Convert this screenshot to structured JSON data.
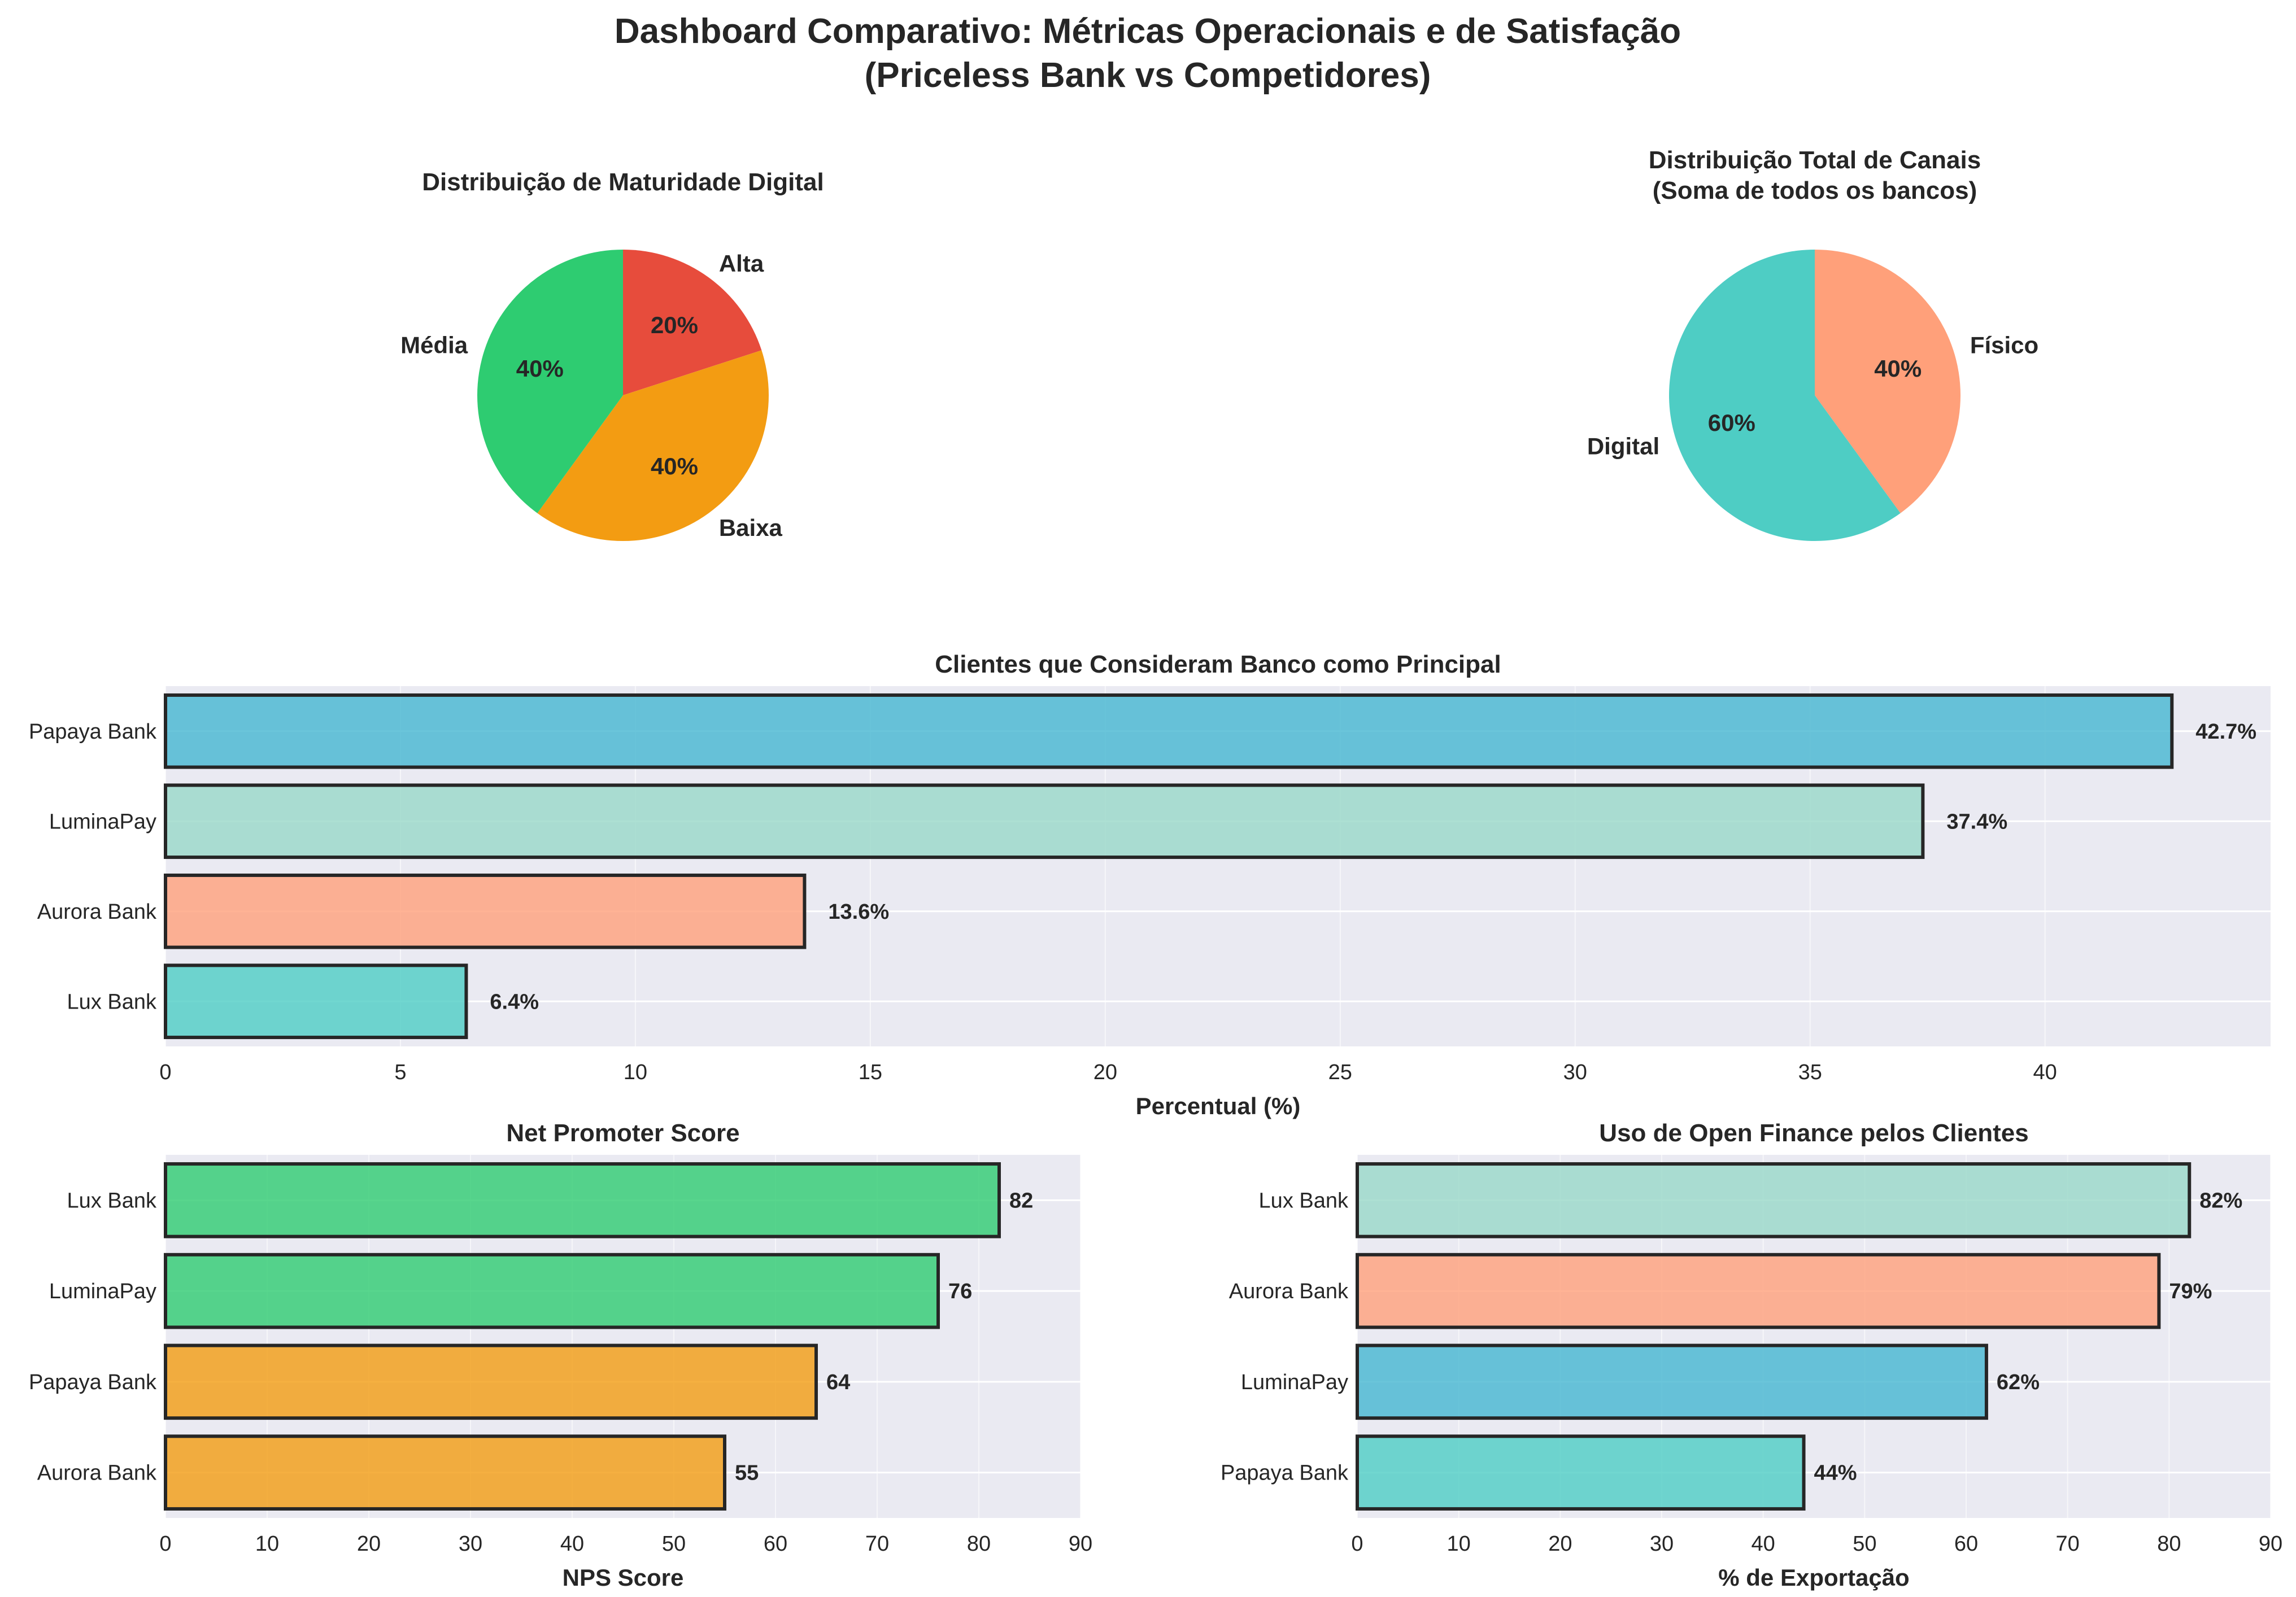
{
  "title_line1": "Dashboard Comparativo: Métricas Operacionais e de Satisfação",
  "title_line2": "(Priceless Bank vs Competidores)",
  "chart_data": [
    {
      "type": "pie",
      "title": "Distribuição de Maturidade Digital",
      "labels": [
        "Alta",
        "Baixa",
        "Média"
      ],
      "values": [
        20,
        40,
        40
      ],
      "pct_labels": [
        "20%",
        "40%",
        "40%"
      ],
      "colors": [
        "#e74c3c",
        "#f39c12",
        "#2ecc71"
      ]
    },
    {
      "type": "pie",
      "title_line1": "Distribuição Total de Canais",
      "title_line2": "(Soma de todos os bancos)",
      "labels": [
        "Físico",
        "Digital"
      ],
      "values": [
        40,
        60
      ],
      "pct_labels": [
        "40%",
        "60%"
      ],
      "colors": [
        "#ffa07a",
        "#4ecdc4"
      ]
    },
    {
      "type": "bar",
      "orientation": "horizontal",
      "title": "Clientes que Consideram Banco como Principal",
      "xlabel": "Percentual (%)",
      "categories": [
        "Papaya Bank",
        "LuminaPay",
        "Aurora Bank",
        "Lux Bank"
      ],
      "values": [
        42.7,
        37.4,
        13.6,
        6.4
      ],
      "value_labels": [
        "42.7%",
        "37.4%",
        "13.6%",
        "6.4%"
      ],
      "colors": [
        "#45b7d1",
        "#98d8c8",
        "#ffa07a",
        "#4ecdc4"
      ],
      "xlim": [
        0,
        44.8
      ],
      "xticks": [
        0,
        5,
        10,
        15,
        20,
        25,
        30,
        35,
        40
      ],
      "xtick_labels": [
        "0",
        "5",
        "10",
        "15",
        "20",
        "25",
        "30",
        "35",
        "40"
      ],
      "grid": true
    },
    {
      "type": "bar",
      "orientation": "horizontal",
      "title": "Net Promoter Score",
      "xlabel": "NPS Score",
      "categories": [
        "Lux Bank",
        "LuminaPay",
        "Papaya Bank",
        "Aurora Bank"
      ],
      "values": [
        82,
        76,
        64,
        55
      ],
      "value_labels": [
        "82",
        "76",
        "64",
        "55"
      ],
      "colors": [
        "#2ecc71",
        "#2ecc71",
        "#f39c12",
        "#f39c12"
      ],
      "xlim": [
        0,
        90
      ],
      "xticks": [
        0,
        10,
        20,
        30,
        40,
        50,
        60,
        70,
        80,
        90
      ],
      "xtick_labels": [
        "0",
        "10",
        "20",
        "30",
        "40",
        "50",
        "60",
        "70",
        "80",
        "90"
      ],
      "grid": true
    },
    {
      "type": "bar",
      "orientation": "horizontal",
      "title": "Uso de Open Finance pelos Clientes",
      "xlabel": "% de Exportação",
      "categories": [
        "Lux Bank",
        "Aurora Bank",
        "LuminaPay",
        "Papaya Bank"
      ],
      "values": [
        82,
        79,
        62,
        44
      ],
      "value_labels": [
        "82%",
        "79%",
        "62%",
        "44%"
      ],
      "colors": [
        "#98d8c8",
        "#ffa07a",
        "#45b7d1",
        "#4ecdc4"
      ],
      "xlim": [
        0,
        90
      ],
      "xticks": [
        0,
        10,
        20,
        30,
        40,
        50,
        60,
        70,
        80,
        90
      ],
      "xtick_labels": [
        "0",
        "10",
        "20",
        "30",
        "40",
        "50",
        "60",
        "70",
        "80",
        "90"
      ],
      "grid": true
    }
  ]
}
